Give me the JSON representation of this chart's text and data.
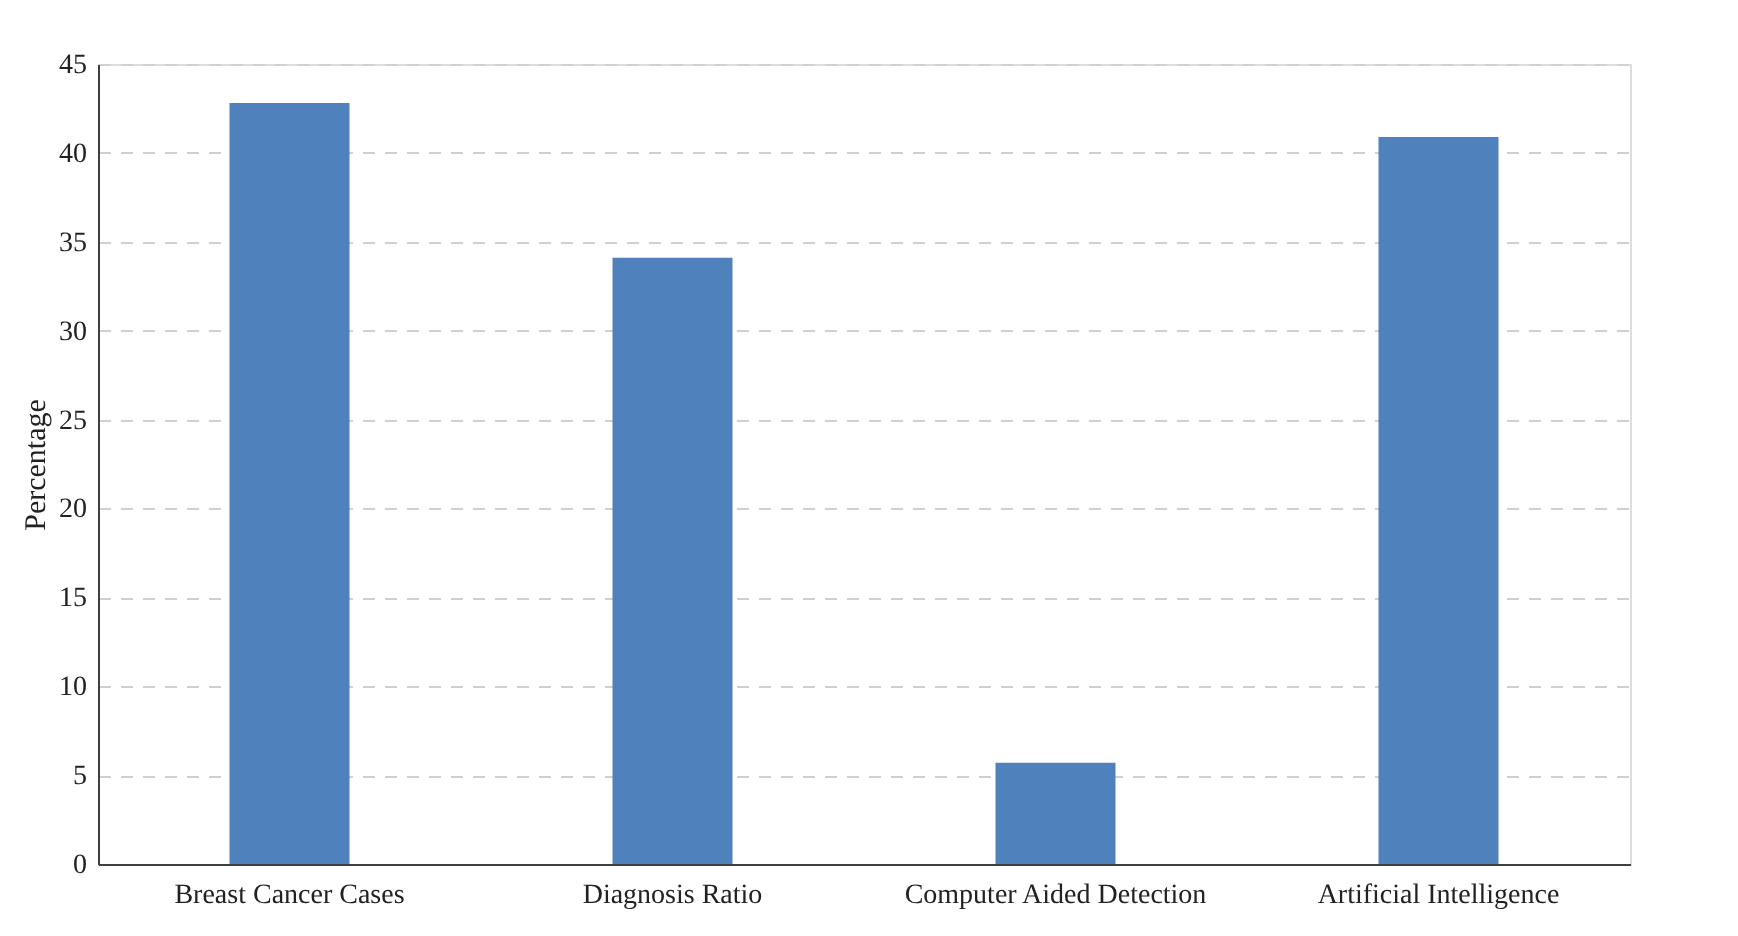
{
  "chart_data": {
    "type": "bar",
    "ylabel": "Percentage",
    "categories": [
      "Breast Cancer Cases",
      "Diagnosis Ratio",
      "Computer Aided Detection",
      "Artificial Intelligence"
    ],
    "values": [
      42.8,
      34.1,
      5.7,
      40.9
    ],
    "color": "#4f81bd",
    "ylim": [
      0,
      45
    ],
    "yticks": [
      0,
      5,
      10,
      15,
      20,
      25,
      30,
      35,
      40,
      45
    ],
    "grid": "y"
  }
}
